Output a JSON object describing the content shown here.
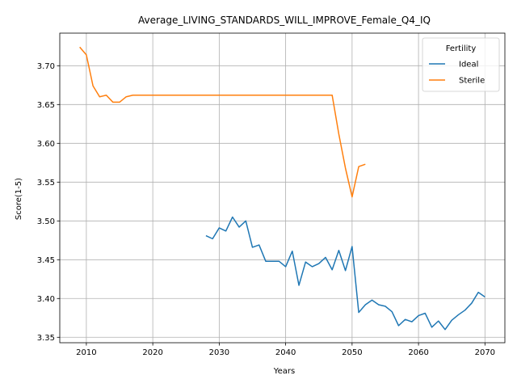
{
  "chart_data": {
    "type": "line",
    "title": "Average_LIVING_STANDARDS_WILL_IMPROVE_Female_Q4_IQ",
    "xlabel": "Years",
    "ylabel": "Score(1-5)",
    "xlim": [
      2006,
      2073
    ],
    "ylim": [
      3.343,
      3.742
    ],
    "xticks": [
      2010,
      2020,
      2030,
      2040,
      2050,
      2060,
      2070
    ],
    "yticks": [
      3.35,
      3.4,
      3.45,
      3.5,
      3.55,
      3.6,
      3.65,
      3.7
    ],
    "yticks_labels": [
      "3.35",
      "3.40",
      "3.45",
      "3.50",
      "3.55",
      "3.60",
      "3.65",
      "3.70"
    ],
    "grid": true,
    "legend": {
      "title": "Fertility",
      "placement": "top-right"
    },
    "series": [
      {
        "name": "Ideal",
        "color": "#1f77b4",
        "x": [
          2028,
          2029,
          2030,
          2031,
          2032,
          2033,
          2034,
          2035,
          2036,
          2037,
          2038,
          2039,
          2040,
          2041,
          2042,
          2043,
          2044,
          2045,
          2046,
          2047,
          2048,
          2049,
          2050,
          2051,
          2052,
          2053,
          2054,
          2055,
          2056,
          2057,
          2058,
          2059,
          2060,
          2061,
          2062,
          2063,
          2064,
          2065,
          2066,
          2067,
          2068,
          2069,
          2070
        ],
        "y": [
          3.481,
          3.477,
          3.491,
          3.487,
          3.505,
          3.492,
          3.5,
          3.466,
          3.469,
          3.448,
          3.448,
          3.448,
          3.441,
          3.461,
          3.417,
          3.447,
          3.441,
          3.445,
          3.453,
          3.437,
          3.462,
          3.436,
          3.467,
          3.382,
          3.392,
          3.398,
          3.392,
          3.39,
          3.383,
          3.365,
          3.373,
          3.37,
          3.378,
          3.381,
          3.363,
          3.371,
          3.36,
          3.372,
          3.379,
          3.385,
          3.394,
          3.408,
          3.402
        ]
      },
      {
        "name": "Sterile",
        "color": "#ff7f0e",
        "x": [
          2009,
          2010,
          2011,
          2012,
          2013,
          2014,
          2015,
          2016,
          2017,
          2018,
          2019,
          2020,
          2021,
          2022,
          2023,
          2024,
          2025,
          2026,
          2027,
          2028,
          2029,
          2030,
          2031,
          2032,
          2033,
          2034,
          2035,
          2036,
          2037,
          2038,
          2039,
          2040,
          2041,
          2042,
          2043,
          2044,
          2045,
          2046,
          2047,
          2048,
          2049,
          2050,
          2051,
          2052
        ],
        "y": [
          3.724,
          3.714,
          3.674,
          3.66,
          3.662,
          3.653,
          3.653,
          3.66,
          3.662,
          3.662,
          3.662,
          3.662,
          3.662,
          3.662,
          3.662,
          3.662,
          3.662,
          3.662,
          3.662,
          3.662,
          3.662,
          3.662,
          3.662,
          3.662,
          3.662,
          3.662,
          3.662,
          3.662,
          3.662,
          3.662,
          3.662,
          3.662,
          3.662,
          3.662,
          3.662,
          3.662,
          3.662,
          3.662,
          3.662,
          3.612,
          3.568,
          3.531,
          3.57,
          3.573
        ]
      }
    ]
  }
}
